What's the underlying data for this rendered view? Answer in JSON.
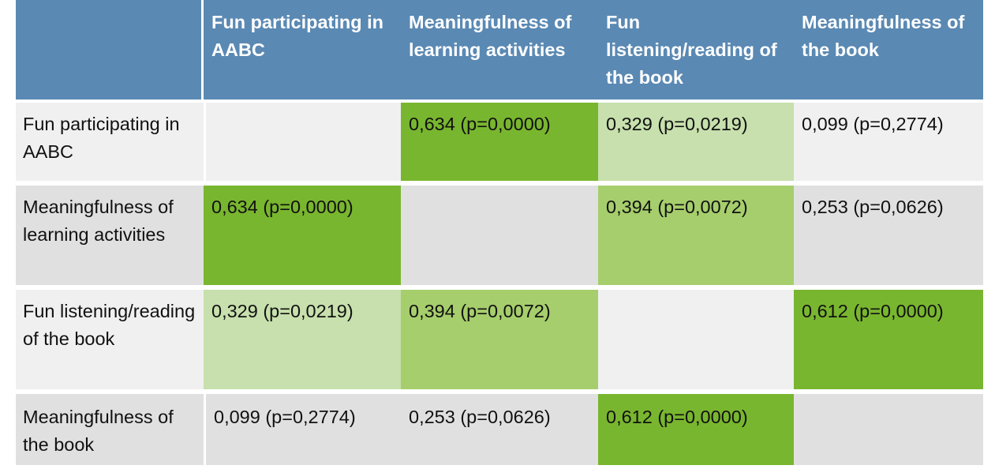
{
  "colors": {
    "header_bg": "#5a89b3",
    "row_bg_light": "#f0f0f0",
    "row_bg_dark": "#e0e0e0",
    "strong": "#79b62f",
    "medium": "#a6ce6c",
    "weak": "#c7e0ad",
    "white": "#ffffff"
  },
  "header": [
    "",
    "Fun participating in AABC",
    "Meaningfulness of learning activities",
    "Fun listening/reading of the book",
    "Meaningfulness of the book"
  ],
  "rows": [
    {
      "label": "Fun participating in AABC",
      "cells": [
        "",
        "0,634 (p=0,0000)",
        "0,329 (p=0,0219)",
        "0,099 (p=0,2774)"
      ],
      "levels": [
        "none",
        "strong",
        "weak",
        "none"
      ]
    },
    {
      "label": "Meaningfulness of learning activities",
      "cells": [
        "0,634 (p=0,0000)",
        "",
        "0,394 (p=0,0072)",
        "0,253 (p=0,0626)"
      ],
      "levels": [
        "strong",
        "none",
        "medium",
        "none"
      ]
    },
    {
      "label": "Fun listening/reading of the book",
      "cells": [
        "0,329 (p=0,0219)",
        "0,394 (p=0,0072)",
        "",
        "0,612 (p=0,0000)"
      ],
      "levels": [
        "weak",
        "medium",
        "none",
        "strong"
      ]
    },
    {
      "label": "Meaningfulness of the book",
      "cells": [
        "0,099 (p=0,2774)",
        "0,253 (p=0,0626)",
        "0,612 (p=0,0000)",
        ""
      ],
      "levels": [
        "none",
        "none",
        "strong",
        "none"
      ]
    }
  ]
}
